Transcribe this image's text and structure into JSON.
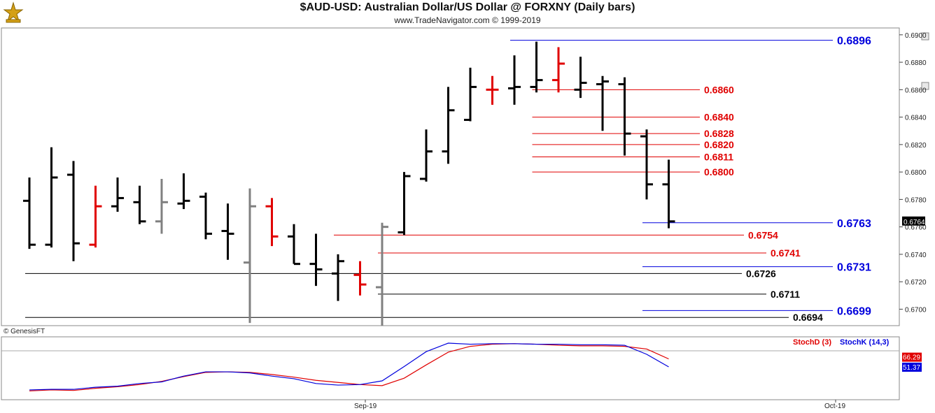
{
  "header": {
    "title": "$AUD-USD:  Australian Dollar/US Dollar @ FORXNY  (Daily bars)",
    "subtitle": "www.TradeNavigator.com © 1999-2019"
  },
  "colors": {
    "up_bar": "#000000",
    "down_bar": "#000000",
    "red_bar": "#e00000",
    "grey_bar": "#808080",
    "blue_level": "#0000dd",
    "red_level": "#e00000",
    "black_level": "#000000",
    "stochD": "#e00000",
    "stochK": "#0000dd"
  },
  "chart_data": [
    {
      "type": "ohlc",
      "name": "price",
      "ylim": [
        0.6688,
        0.6905
      ],
      "yticks": [
        "0.6700",
        "0.6720",
        "0.6740",
        "0.6760",
        "0.6780",
        "0.6800",
        "0.6820",
        "0.6840",
        "0.6860",
        "0.6880",
        "0.6900"
      ],
      "xlabels": [
        "Sep-19",
        "Oct-19"
      ],
      "copyright": "© GenesisFT",
      "last_price": "0.6764",
      "bars": [
        {
          "o": 0.6779,
          "h": 0.6796,
          "l": 0.6744,
          "c": 0.6747,
          "color": "black"
        },
        {
          "o": 0.6747,
          "h": 0.6818,
          "l": 0.6745,
          "c": 0.6796,
          "color": "black"
        },
        {
          "o": 0.6798,
          "h": 0.6808,
          "l": 0.6735,
          "c": 0.6748,
          "color": "black"
        },
        {
          "o": 0.6747,
          "h": 0.679,
          "l": 0.6745,
          "c": 0.6775,
          "color": "red"
        },
        {
          "o": 0.6775,
          "h": 0.6796,
          "l": 0.6771,
          "c": 0.6781,
          "color": "black"
        },
        {
          "o": 0.6778,
          "h": 0.679,
          "l": 0.6762,
          "c": 0.6764,
          "color": "black"
        },
        {
          "o": 0.6764,
          "h": 0.6795,
          "l": 0.6755,
          "c": 0.6778,
          "color": "grey"
        },
        {
          "o": 0.6777,
          "h": 0.6799,
          "l": 0.6773,
          "c": 0.6779,
          "color": "black"
        },
        {
          "o": 0.6782,
          "h": 0.6785,
          "l": 0.6751,
          "c": 0.6755,
          "color": "black"
        },
        {
          "o": 0.6757,
          "h": 0.6777,
          "l": 0.6736,
          "c": 0.6755,
          "color": "black"
        },
        {
          "o": 0.6734,
          "h": 0.6788,
          "l": 0.669,
          "c": 0.6775,
          "color": "grey"
        },
        {
          "o": 0.6775,
          "h": 0.6781,
          "l": 0.6746,
          "c": 0.6753,
          "color": "red"
        },
        {
          "o": 0.6753,
          "h": 0.6762,
          "l": 0.6733,
          "c": 0.6733,
          "color": "black"
        },
        {
          "o": 0.6733,
          "h": 0.6755,
          "l": 0.6717,
          "c": 0.6729,
          "color": "black"
        },
        {
          "o": 0.6726,
          "h": 0.674,
          "l": 0.6706,
          "c": 0.6735,
          "color": "black"
        },
        {
          "o": 0.6725,
          "h": 0.6735,
          "l": 0.671,
          "c": 0.6718,
          "color": "red"
        },
        {
          "o": 0.6716,
          "h": 0.6763,
          "l": 0.6688,
          "c": 0.676,
          "color": "grey"
        },
        {
          "o": 0.6756,
          "h": 0.68,
          "l": 0.6754,
          "c": 0.6797,
          "color": "black"
        },
        {
          "o": 0.6795,
          "h": 0.6831,
          "l": 0.6793,
          "c": 0.6815,
          "color": "black"
        },
        {
          "o": 0.6815,
          "h": 0.6862,
          "l": 0.6806,
          "c": 0.6845,
          "color": "black"
        },
        {
          "o": 0.6838,
          "h": 0.6876,
          "l": 0.6837,
          "c": 0.6862,
          "color": "black"
        },
        {
          "o": 0.686,
          "h": 0.687,
          "l": 0.6849,
          "c": 0.686,
          "color": "red"
        },
        {
          "o": 0.6861,
          "h": 0.6885,
          "l": 0.6849,
          "c": 0.6862,
          "color": "black"
        },
        {
          "o": 0.6862,
          "h": 0.6895,
          "l": 0.6858,
          "c": 0.6867,
          "color": "black"
        },
        {
          "o": 0.6867,
          "h": 0.6891,
          "l": 0.6858,
          "c": 0.6879,
          "color": "red"
        },
        {
          "o": 0.686,
          "h": 0.6884,
          "l": 0.6854,
          "c": 0.6865,
          "color": "black"
        },
        {
          "o": 0.6864,
          "h": 0.687,
          "l": 0.683,
          "c": 0.6866,
          "color": "black"
        },
        {
          "o": 0.6864,
          "h": 0.6869,
          "l": 0.6812,
          "c": 0.6828,
          "color": "black"
        },
        {
          "o": 0.6826,
          "h": 0.6831,
          "l": 0.678,
          "c": 0.6791,
          "color": "black"
        },
        {
          "o": 0.6791,
          "h": 0.6809,
          "l": 0.6759,
          "c": 0.6764,
          "color": "black"
        }
      ],
      "levels": [
        {
          "value": "0.6896",
          "start_bar": 22,
          "color": "blue"
        },
        {
          "value": "0.6860",
          "start_bar": 23,
          "color": "red"
        },
        {
          "value": "0.6840",
          "start_bar": 23,
          "color": "red"
        },
        {
          "value": "0.6828",
          "start_bar": 23,
          "color": "red"
        },
        {
          "value": "0.6820",
          "start_bar": 23,
          "color": "red"
        },
        {
          "value": "0.6811",
          "start_bar": 23,
          "color": "red"
        },
        {
          "value": "0.6800",
          "start_bar": 23,
          "color": "red"
        },
        {
          "value": "0.6763",
          "start_bar": 28,
          "color": "blue"
        },
        {
          "value": "0.6754",
          "start_bar": 14,
          "color": "red"
        },
        {
          "value": "0.6741",
          "start_bar": 16,
          "color": "red"
        },
        {
          "value": "0.6731",
          "start_bar": 28,
          "color": "blue"
        },
        {
          "value": "0.6726",
          "start_bar": 0,
          "color": "black"
        },
        {
          "value": "0.6711",
          "start_bar": 16,
          "color": "black"
        },
        {
          "value": "0.6699",
          "start_bar": 28,
          "color": "blue"
        },
        {
          "value": "0.6694",
          "start_bar": 0,
          "color": "black"
        }
      ]
    },
    {
      "type": "line",
      "name": "stochastic",
      "ylim": [
        0,
        100
      ],
      "legend": [
        "StochD (3)",
        "StochK (14,3)"
      ],
      "last_values": {
        "stochD": "66.29",
        "stochK": "51.37"
      },
      "series": [
        {
          "name": "StochD (3)",
          "values": [
            6,
            8,
            7,
            11,
            14,
            18,
            24,
            33,
            41,
            42,
            41,
            37,
            32,
            26,
            22,
            18,
            16,
            30,
            55,
            79,
            90,
            94,
            95,
            94,
            92,
            91,
            91,
            90,
            85,
            66.29
          ]
        },
        {
          "name": "StochK (14,3)",
          "values": [
            8,
            9,
            9,
            13,
            15,
            20,
            23,
            34,
            42,
            42,
            40,
            34,
            29,
            20,
            17,
            18,
            25,
            52,
            80,
            96,
            94,
            95,
            95,
            94,
            94,
            93,
            93,
            92,
            75,
            51.37
          ]
        }
      ]
    }
  ]
}
